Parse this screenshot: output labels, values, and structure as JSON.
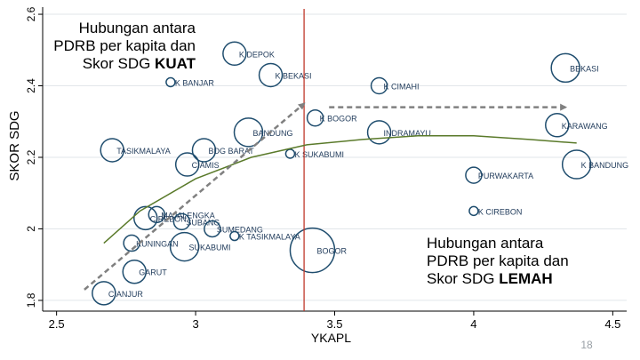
{
  "chart_data": {
    "type": "scatter",
    "xlabel": "YKAPL",
    "ylabel": "SKOR SDG",
    "xlim": [
      2.45,
      4.55
    ],
    "ylim": [
      1.77,
      2.62
    ],
    "x_ticks": [
      "2.5",
      "3",
      "3.5",
      "4",
      "4.5"
    ],
    "x_tick_values": [
      2.5,
      3,
      3.5,
      4,
      4.5
    ],
    "y_ticks": [
      "1.8",
      "2",
      "2.2",
      "2.4",
      "2.6"
    ],
    "y_tick_values": [
      1.8,
      2.0,
      2.2,
      2.4,
      2.6
    ],
    "grid": "horizontal",
    "reference_line_x": 3.39,
    "points": [
      {
        "label": "K DEPOK",
        "x": 3.14,
        "y": 2.49,
        "size": 2
      },
      {
        "label": "K BANJAR",
        "x": 2.91,
        "y": 2.41,
        "size": 0
      },
      {
        "label": "K BEKASI",
        "x": 3.27,
        "y": 2.43,
        "size": 2
      },
      {
        "label": "BEKASI",
        "x": 4.33,
        "y": 2.45,
        "size": 3
      },
      {
        "label": "K CIMAHI",
        "x": 3.66,
        "y": 2.4,
        "size": 1
      },
      {
        "label": "K BOGOR",
        "x": 3.43,
        "y": 2.31,
        "size": 1
      },
      {
        "label": "KARAWANG",
        "x": 4.3,
        "y": 2.29,
        "size": 2
      },
      {
        "label": "BANDUNG",
        "x": 3.19,
        "y": 2.27,
        "size": 3
      },
      {
        "label": "INDRAMAYU",
        "x": 3.66,
        "y": 2.27,
        "size": 2
      },
      {
        "label": "TASIKMALAYA",
        "x": 2.7,
        "y": 2.22,
        "size": 2
      },
      {
        "label": "BDG BARAT",
        "x": 3.03,
        "y": 2.22,
        "size": 2
      },
      {
        "label": "K SUKABUMI",
        "x": 3.34,
        "y": 2.21,
        "size": 0
      },
      {
        "label": "CIAMIS",
        "x": 2.97,
        "y": 2.18,
        "size": 2
      },
      {
        "label": "K BANDUNG",
        "x": 4.37,
        "y": 2.18,
        "size": 3
      },
      {
        "label": "PURWAKARTA",
        "x": 4.0,
        "y": 2.15,
        "size": 1
      },
      {
        "label": "K CIREBON",
        "x": 4.0,
        "y": 2.05,
        "size": 0
      },
      {
        "label": "MAJALENGKA",
        "x": 2.86,
        "y": 2.04,
        "size": 1
      },
      {
        "label": "CIREBON",
        "x": 2.82,
        "y": 2.03,
        "size": 2
      },
      {
        "label": "SUBANG",
        "x": 2.95,
        "y": 2.02,
        "size": 1
      },
      {
        "label": "SUMEDANG",
        "x": 3.06,
        "y": 2.0,
        "size": 1
      },
      {
        "label": "K TASIKMALAYA",
        "x": 3.14,
        "y": 1.98,
        "size": 0
      },
      {
        "label": "KUNINGAN",
        "x": 2.77,
        "y": 1.96,
        "size": 1
      },
      {
        "label": "SUKABUMI",
        "x": 2.96,
        "y": 1.95,
        "size": 3
      },
      {
        "label": "BOGOR",
        "x": 3.42,
        "y": 1.94,
        "size": 4
      },
      {
        "label": "GARUT",
        "x": 2.78,
        "y": 1.88,
        "size": 2
      },
      {
        "label": "CIANJUR",
        "x": 2.67,
        "y": 1.82,
        "size": 2
      }
    ],
    "fit_curve": [
      {
        "x": 2.67,
        "y": 1.96
      },
      {
        "x": 2.8,
        "y": 2.05
      },
      {
        "x": 3.0,
        "y": 2.14
      },
      {
        "x": 3.2,
        "y": 2.2
      },
      {
        "x": 3.4,
        "y": 2.235
      },
      {
        "x": 3.6,
        "y": 2.25
      },
      {
        "x": 3.8,
        "y": 2.26
      },
      {
        "x": 4.0,
        "y": 2.26
      },
      {
        "x": 4.2,
        "y": 2.25
      },
      {
        "x": 4.37,
        "y": 2.24
      }
    ],
    "trend_arrow_rising": {
      "from": {
        "x": 2.6,
        "y": 1.83
      },
      "to": {
        "x": 3.39,
        "y": 2.35
      }
    },
    "trend_arrow_flat": {
      "from": {
        "x": 3.48,
        "y": 2.34
      },
      "to": {
        "x": 4.33,
        "y": 2.34
      }
    }
  },
  "annotations": {
    "strong": {
      "line1": "Hubungan antara",
      "line2": "PDRB per kapita dan",
      "line3_prefix": "Skor SDG ",
      "line3_emph": "KUAT"
    },
    "weak": {
      "line1": "Hubungan antara",
      "line2": "PDRB per kapita dan",
      "line3_prefix": "Skor SDG ",
      "line3_emph": "LEMAH"
    }
  },
  "slide_number": "18",
  "colors": {
    "axis": "#000000",
    "grid": "#e2e6ea",
    "bubble": "#1f4d6e",
    "label": "#1f3a5a",
    "vline": "#c0392b",
    "fit": "#5a7a2a",
    "arrow": "#808080"
  }
}
